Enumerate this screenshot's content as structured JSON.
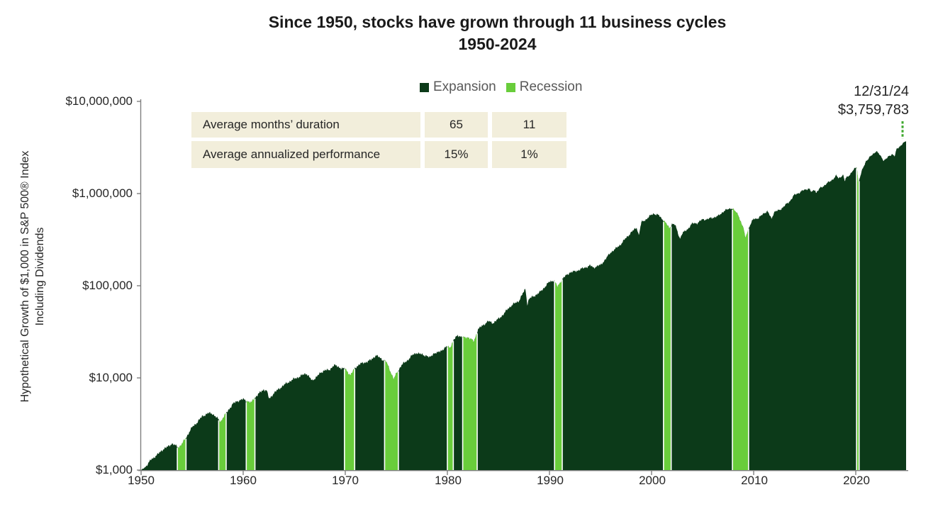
{
  "title": {
    "line1": "Since 1950, stocks have grown through 11 business cycles",
    "line2": "1950-2024"
  },
  "legend": [
    {
      "label": "Expansion",
      "color": "#0c3a19"
    },
    {
      "label": "Recession",
      "color": "#69cd3b"
    }
  ],
  "stats_table": {
    "rows": [
      {
        "label": "Average months’ duration",
        "expansion": "65",
        "recession": "11"
      },
      {
        "label": "Average annualized performance",
        "expansion": "15%",
        "recession": "1%"
      }
    ]
  },
  "annotation": {
    "date": "12/31/24",
    "value": "$3,759,783"
  },
  "y_axis": {
    "title_line1": "Hypothetical Growth of $1,000 in S&P 500® Index",
    "title_line2": "Including Dividends",
    "ticks": [
      "$10,000,000",
      "$1,000,000",
      "$100,000",
      "$10,000",
      "$1,000"
    ]
  },
  "x_axis": {
    "ticks": [
      "1950",
      "1960",
      "1970",
      "1980",
      "1990",
      "2000",
      "2010",
      "2020"
    ]
  },
  "chart_data": {
    "type": "area",
    "title": "Since 1950, stocks have grown through 11 business cycles 1950-2024",
    "ylabel": "Hypothetical Growth of $1,000 in S&P 500 Index Including Dividends",
    "y_scale": "log",
    "ylim": [
      1000,
      10000000
    ],
    "x_range": [
      1950,
      2025
    ],
    "grid": false,
    "legend_position": "top-center",
    "end_marker": {
      "date": "12/31/24",
      "value": 3759783
    },
    "stats": {
      "expansion": {
        "avg_months_duration": 65,
        "avg_annualized_performance_pct": 15
      },
      "recession": {
        "avg_months_duration": 11,
        "avg_annualized_performance_pct": 1
      }
    },
    "series": [
      {
        "name": "Growth of $1,000 in S&P 500 Index (anchor points, [year, dollars])",
        "points": [
          [
            1950.0,
            1000
          ],
          [
            1950.3,
            1060
          ],
          [
            1950.6,
            1130
          ],
          [
            1951.0,
            1317
          ],
          [
            1951.5,
            1430
          ],
          [
            1952.0,
            1633
          ],
          [
            1952.5,
            1760
          ],
          [
            1953.0,
            1933
          ],
          [
            1953.7,
            1770
          ],
          [
            1954.0,
            1914
          ],
          [
            1954.5,
            2350
          ],
          [
            1955.0,
            2921
          ],
          [
            1955.5,
            3300
          ],
          [
            1956.0,
            3844
          ],
          [
            1956.6,
            4150
          ],
          [
            1957.0,
            4098
          ],
          [
            1957.8,
            3350
          ],
          [
            1958.0,
            3655
          ],
          [
            1958.5,
            4400
          ],
          [
            1959.0,
            5241
          ],
          [
            1959.5,
            5650
          ],
          [
            1960.0,
            5870
          ],
          [
            1960.8,
            5350
          ],
          [
            1961.0,
            5899
          ],
          [
            1961.5,
            6700
          ],
          [
            1962.0,
            7486
          ],
          [
            1962.3,
            7300
          ],
          [
            1962.55,
            5900
          ],
          [
            1963.0,
            6835
          ],
          [
            1963.5,
            7600
          ],
          [
            1964.0,
            8393
          ],
          [
            1964.5,
            9100
          ],
          [
            1965.0,
            9778
          ],
          [
            1965.5,
            10300
          ],
          [
            1966.0,
            11000
          ],
          [
            1966.2,
            11200
          ],
          [
            1966.75,
            9300
          ],
          [
            1967.0,
            9889
          ],
          [
            1967.5,
            11100
          ],
          [
            1968.0,
            12262
          ],
          [
            1968.4,
            12000
          ],
          [
            1968.9,
            13900
          ],
          [
            1969.0,
            13623
          ],
          [
            1969.5,
            12900
          ],
          [
            1970.0,
            12465
          ],
          [
            1970.5,
            10700
          ],
          [
            1971.0,
            12964
          ],
          [
            1971.4,
            14100
          ],
          [
            1972.0,
            14818
          ],
          [
            1972.5,
            15600
          ],
          [
            1973.0,
            17633
          ],
          [
            1973.5,
            16200
          ],
          [
            1974.0,
            15041
          ],
          [
            1974.75,
            9700
          ],
          [
            1975.0,
            11055
          ],
          [
            1975.5,
            13800
          ],
          [
            1976.0,
            15167
          ],
          [
            1976.5,
            17400
          ],
          [
            1977.0,
            18777
          ],
          [
            1977.5,
            17900
          ],
          [
            1978.0,
            17425
          ],
          [
            1978.25,
            16500
          ],
          [
            1978.7,
            18700
          ],
          [
            1979.0,
            18575
          ],
          [
            1979.5,
            20200
          ],
          [
            1980.0,
            21993
          ],
          [
            1980.25,
            21300
          ],
          [
            1980.6,
            25500
          ],
          [
            1981.0,
            29119
          ],
          [
            1981.6,
            27200
          ],
          [
            1982.0,
            27692
          ],
          [
            1982.6,
            24900
          ],
          [
            1983.0,
            33590
          ],
          [
            1983.5,
            37500
          ],
          [
            1984.0,
            41148
          ],
          [
            1984.5,
            39500
          ],
          [
            1985.0,
            43740
          ],
          [
            1985.5,
            49000
          ],
          [
            1986.0,
            57606
          ],
          [
            1986.5,
            63500
          ],
          [
            1987.0,
            68378
          ],
          [
            1987.65,
            93000
          ],
          [
            1987.83,
            62500
          ],
          [
            1988.0,
            71934
          ],
          [
            1988.5,
            77500
          ],
          [
            1989.0,
            83875
          ],
          [
            1989.5,
            96000
          ],
          [
            1990.0,
            110463
          ],
          [
            1990.45,
            115000
          ],
          [
            1990.8,
            96500
          ],
          [
            1991.0,
            107039
          ],
          [
            1991.3,
            120000
          ],
          [
            1992.0,
            139686
          ],
          [
            1992.5,
            143000
          ],
          [
            1993.0,
            150302
          ],
          [
            1993.5,
            158000
          ],
          [
            1994.0,
            165482
          ],
          [
            1994.3,
            157500
          ],
          [
            1995.0,
            167634
          ],
          [
            1995.5,
            195000
          ],
          [
            1996.0,
            230664
          ],
          [
            1996.5,
            253000
          ],
          [
            1997.0,
            283717
          ],
          [
            1997.5,
            330000
          ],
          [
            1998.0,
            378478
          ],
          [
            1998.55,
            430000
          ],
          [
            1998.75,
            352000
          ],
          [
            1999.0,
            486723
          ],
          [
            1999.5,
            530000
          ],
          [
            2000.0,
            588935
          ],
          [
            2000.2,
            608000
          ],
          [
            2000.7,
            580000
          ],
          [
            2001.0,
            535342
          ],
          [
            2001.2,
            512000
          ],
          [
            2001.75,
            420000
          ],
          [
            2002.0,
            471636
          ],
          [
            2002.3,
            458000
          ],
          [
            2002.78,
            325000
          ],
          [
            2003.0,
            367404
          ],
          [
            2003.5,
            410000
          ],
          [
            2004.0,
            472849
          ],
          [
            2004.5,
            480000
          ],
          [
            2005.0,
            524389
          ],
          [
            2005.5,
            527000
          ],
          [
            2006.0,
            550084
          ],
          [
            2006.5,
            567000
          ],
          [
            2007.0,
            636997
          ],
          [
            2007.78,
            700000
          ],
          [
            2008.0,
            672032
          ],
          [
            2008.5,
            590000
          ],
          [
            2008.8,
            470000
          ],
          [
            2009.0,
            423380
          ],
          [
            2009.17,
            330000
          ],
          [
            2009.5,
            420000
          ],
          [
            2010.0,
            535575
          ],
          [
            2010.5,
            540000
          ],
          [
            2011.0,
            616447
          ],
          [
            2011.35,
            640000
          ],
          [
            2011.75,
            535000
          ],
          [
            2012.0,
            629392
          ],
          [
            2012.5,
            660000
          ],
          [
            2013.0,
            730095
          ],
          [
            2013.5,
            820000
          ],
          [
            2014.0,
            966646
          ],
          [
            2014.5,
            1030000
          ],
          [
            2015.0,
            1099077
          ],
          [
            2015.4,
            1140000
          ],
          [
            2015.67,
            1030000
          ],
          [
            2016.0,
            1114464
          ],
          [
            2016.12,
            1020000
          ],
          [
            2016.5,
            1140000
          ],
          [
            2017.0,
            1248200
          ],
          [
            2017.5,
            1360000
          ],
          [
            2018.0,
            1520308
          ],
          [
            2018.1,
            1570000
          ],
          [
            2018.3,
            1460000
          ],
          [
            2018.75,
            1600000
          ],
          [
            2018.95,
            1330000
          ],
          [
            2019.0,
            1453414
          ],
          [
            2019.5,
            1650000
          ],
          [
            2020.0,
            1911240
          ],
          [
            2020.12,
            1950000
          ],
          [
            2020.25,
            1320000
          ],
          [
            2020.6,
            1750000
          ],
          [
            2021.0,
            2262908
          ],
          [
            2021.5,
            2550000
          ],
          [
            2022.0,
            2912362
          ],
          [
            2022.3,
            2650000
          ],
          [
            2022.75,
            2300000
          ],
          [
            2023.0,
            2385225
          ],
          [
            2023.55,
            2700000
          ],
          [
            2023.83,
            2550000
          ],
          [
            2024.0,
            3012538
          ],
          [
            2024.3,
            3250000
          ],
          [
            2024.6,
            3500000
          ],
          [
            2024.8,
            3620000
          ],
          [
            2025.0,
            3759783
          ]
        ]
      }
    ],
    "recessions": [
      [
        1953.55,
        1954.4
      ],
      [
        1957.6,
        1958.33
      ],
      [
        1960.3,
        1961.15
      ],
      [
        1969.92,
        1970.92
      ],
      [
        1973.85,
        1975.2
      ],
      [
        1980.0,
        1980.58
      ],
      [
        1981.5,
        1982.92
      ],
      [
        1990.5,
        1991.25
      ],
      [
        2001.17,
        2001.92
      ],
      [
        2007.92,
        2009.5
      ],
      [
        2020.08,
        2020.33
      ]
    ],
    "colors": {
      "expansion": "#0c3a19",
      "recession": "#69cd3b",
      "recession_gap": "#ffffff",
      "dashed_line": "#3fa82e",
      "axis": "#7f7f7f",
      "table_bg": "#f2eedb",
      "legend_text": "#595959",
      "text": "#262626",
      "title": "#1a1a1a"
    }
  }
}
